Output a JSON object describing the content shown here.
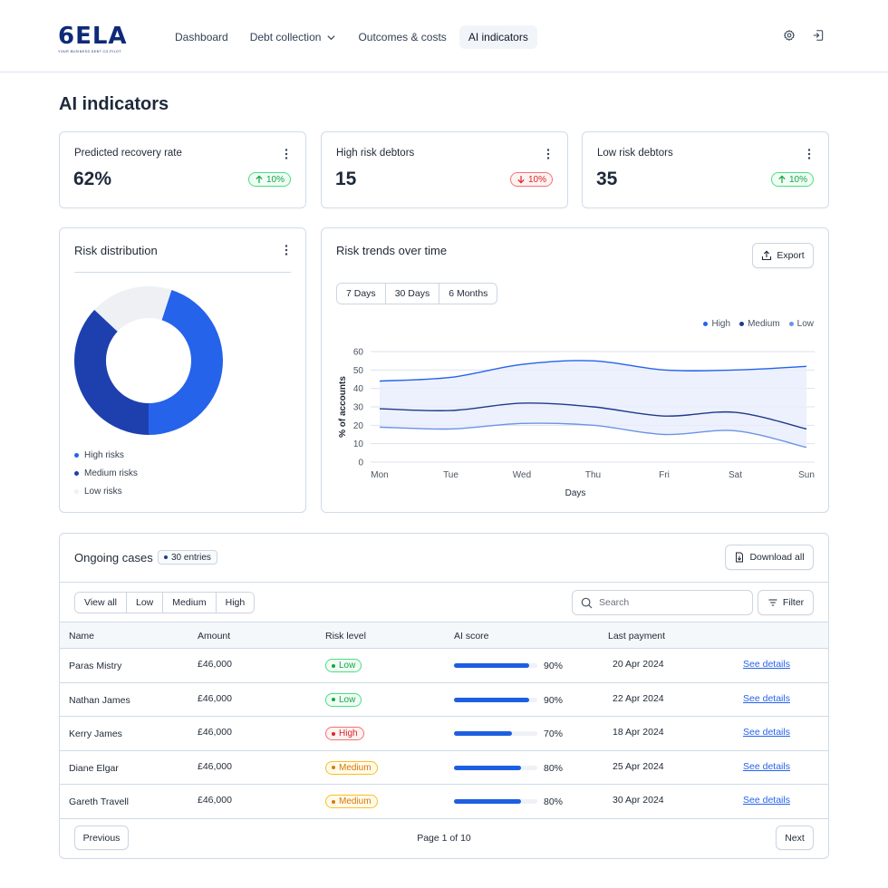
{
  "brand": {
    "logo_text": "6ELA",
    "tagline": "YOUR BUSINESS DEBT CO-PILOT",
    "color": "#0f2a78"
  },
  "nav": {
    "items": [
      {
        "label": "Dashboard",
        "active": false
      },
      {
        "label": "Debt collection",
        "active": false,
        "has_dropdown": true
      },
      {
        "label": "Outcomes & costs",
        "active": false
      },
      {
        "label": "AI indicators",
        "active": true
      }
    ],
    "icons": [
      "gear-icon",
      "logout-icon"
    ]
  },
  "page": {
    "title": "AI indicators"
  },
  "kpis": [
    {
      "title": "Predicted recovery rate",
      "value": "62%",
      "trend": "10%",
      "direction": "up"
    },
    {
      "title": "High risk debtors",
      "value": "15",
      "trend": "10%",
      "direction": "down"
    },
    {
      "title": "Low risk debtors",
      "value": "35",
      "trend": "10%",
      "direction": "up"
    }
  ],
  "risk_distribution": {
    "title": "Risk distribution",
    "legend": [
      {
        "label": "High risks",
        "color": "#2563eb"
      },
      {
        "label": "Medium risks",
        "color": "#1e40af"
      },
      {
        "label": "Low risks",
        "color": "#eef0f3"
      }
    ]
  },
  "trends": {
    "title": "Risk trends over time",
    "export_label": "Export",
    "ranges": [
      "7 Days",
      "30 Days",
      "6 Months"
    ]
  },
  "chart_data": [
    {
      "type": "pie",
      "categories": [
        "High risks",
        "Medium risks",
        "Low risks"
      ],
      "values": [
        45,
        37,
        18
      ],
      "colors": [
        "#2563eb",
        "#1e40af",
        "#eef0f3"
      ],
      "donut": true
    },
    {
      "type": "line",
      "x": [
        "Mon",
        "Tue",
        "Wed",
        "Thu",
        "Fri",
        "Sat",
        "Sun"
      ],
      "xlabel": "Days",
      "ylabel": "% of accounts",
      "ylim": [
        0,
        60
      ],
      "yticks": [
        0,
        10,
        20,
        30,
        40,
        50,
        60
      ],
      "legend_position": "top-right",
      "grid": true,
      "series": [
        {
          "name": "High",
          "color": "#2563eb",
          "values": [
            44,
            46,
            53,
            55,
            50,
            50,
            52
          ]
        },
        {
          "name": "Medium",
          "color": "#1e3a8a",
          "values": [
            29,
            28,
            32,
            30,
            25,
            27,
            18
          ]
        },
        {
          "name": "Low",
          "color": "#6b93e6",
          "values": [
            19,
            18,
            21,
            20,
            15,
            17,
            8
          ]
        }
      ]
    }
  ],
  "cases": {
    "title": "Ongoing cases",
    "count_label": "30 entries",
    "download_label": "Download all",
    "filters": [
      "View all",
      "Low",
      "Medium",
      "High"
    ],
    "search_placeholder": "Search",
    "filter_label": "Filter",
    "columns": [
      "Name",
      "Amount",
      "Risk level",
      "AI score",
      "Last payment"
    ],
    "rows": [
      {
        "name": "Paras Mistry",
        "amount": "£46,000",
        "risk": "Low",
        "score": "90%",
        "score_value": 0.9,
        "last_payment": "20 Apr 2024",
        "link": "See details"
      },
      {
        "name": "Nathan James",
        "amount": "£46,000",
        "risk": "Low",
        "score": "90%",
        "score_value": 0.9,
        "last_payment": "22 Apr 2024",
        "link": "See details"
      },
      {
        "name": "Kerry James",
        "amount": "£46,000",
        "risk": "High",
        "score": "70%",
        "score_value": 0.7,
        "last_payment": "18 Apr 2024",
        "link": "See details"
      },
      {
        "name": "Diane Elgar",
        "amount": "£46,000",
        "risk": "Medium",
        "score": "80%",
        "score_value": 0.8,
        "last_payment": "25 Apr 2024",
        "link": "See details"
      },
      {
        "name": "Gareth Travell",
        "amount": "£46,000",
        "risk": "Medium",
        "score": "80%",
        "score_value": 0.8,
        "last_payment": "30 Apr 2024",
        "link": "See details"
      }
    ],
    "pagination": {
      "previous": "Previous",
      "status": "Page 1 of 10",
      "next": "Next"
    }
  }
}
